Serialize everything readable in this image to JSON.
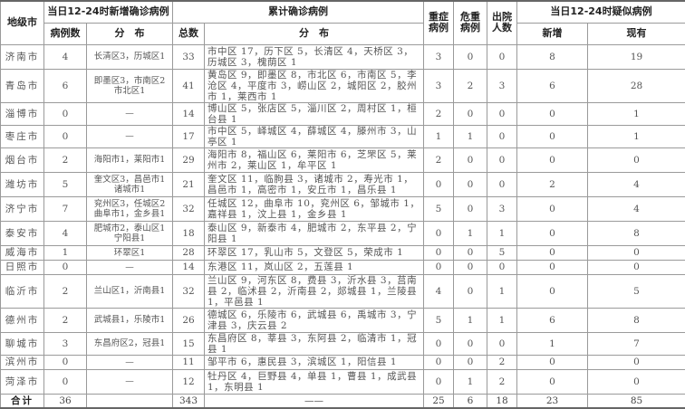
{
  "headers": {
    "city": "地级市",
    "new_group": "当日12-24时新增确诊病例",
    "new_count": "病例数",
    "new_dist": "分　布",
    "cum_group": "累计确诊病例",
    "cum_total": "总数",
    "cum_dist": "分　布",
    "severe": "重症病例",
    "critical": "危重病例",
    "discharged": "出院人数",
    "suspect_group": "当日12-24时疑似病例",
    "suspect_new": "新增",
    "suspect_current": "现有"
  },
  "rows": [
    {
      "city": "济南市",
      "new": "4",
      "new_dist": "长清区3，历城区1",
      "total": "33",
      "dist": "市中区 17，历下区 5，长清区 4，天桥区 3，历城区 3，槐荫区 1",
      "severe": "3",
      "critical": "0",
      "discharged": "0",
      "s_new": "8",
      "s_cur": "19"
    },
    {
      "city": "青岛市",
      "new": "6",
      "new_dist": "即墨区3，市南区2 市北区1",
      "total": "41",
      "dist": "黄岛区 9，即墨区 8，市北区 6，市南区 5，李沧区 4，平度市 3，崂山区 2，城阳区 2，胶州市 1，莱西市 1",
      "severe": "3",
      "critical": "2",
      "discharged": "3",
      "s_new": "6",
      "s_cur": "28"
    },
    {
      "city": "淄博市",
      "new": "0",
      "new_dist": "—",
      "total": "14",
      "dist": "博山区 5，张店区 5，淄川区 2，周村区 1，桓台县 1",
      "severe": "2",
      "critical": "0",
      "discharged": "0",
      "s_new": "0",
      "s_cur": "1"
    },
    {
      "city": "枣庄市",
      "new": "0",
      "new_dist": "—",
      "total": "17",
      "dist": "市中区 5，峄城区 4，薛城区 4，滕州市 3，山亭区 1",
      "severe": "1",
      "critical": "1",
      "discharged": "0",
      "s_new": "0",
      "s_cur": "1"
    },
    {
      "city": "烟台市",
      "new": "2",
      "new_dist": "海阳市1，莱阳市1",
      "total": "29",
      "dist": "海阳市 8，福山区 6，莱阳市 6，芝罘区 5，莱州市 2，莱山区 1，牟平区 1",
      "severe": "2",
      "critical": "0",
      "discharged": "0",
      "s_new": "0",
      "s_cur": "0"
    },
    {
      "city": "潍坊市",
      "new": "5",
      "new_dist": "奎文区3，昌邑市1 诸城市1",
      "total": "21",
      "dist": "奎文区 11，临朐县 3，诸城市 2，寿光市 1，昌邑市 1，高密市 1，安丘市 1，昌乐县 1",
      "severe": "0",
      "critical": "0",
      "discharged": "0",
      "s_new": "2",
      "s_cur": "4"
    },
    {
      "city": "济宁市",
      "new": "7",
      "new_dist": "兖州区3，任城区2 曲阜市1，金乡县1",
      "total": "32",
      "dist": "任城区 12，曲阜市 10，兖州区 6，邹城市 1，嘉祥县 1，汶上县 1，金乡县 1",
      "severe": "5",
      "critical": "0",
      "discharged": "3",
      "s_new": "0",
      "s_cur": "4"
    },
    {
      "city": "泰安市",
      "new": "4",
      "new_dist": "肥城市2，泰山区1 宁阳县1",
      "total": "18",
      "dist": "泰山区 9，新泰市 4，肥城市 2，东平县 2，宁阳县 1",
      "severe": "0",
      "critical": "1",
      "discharged": "1",
      "s_new": "0",
      "s_cur": "8"
    },
    {
      "city": "威海市",
      "new": "1",
      "new_dist": "环翠区1",
      "total": "28",
      "dist": "环翠区 17，乳山市 5，文登区 5，荣成市 1",
      "severe": "0",
      "critical": "0",
      "discharged": "5",
      "s_new": "0",
      "s_cur": "0"
    },
    {
      "city": "日照市",
      "new": "0",
      "new_dist": "—",
      "total": "14",
      "dist": "东港区 11，岚山区 2，五莲县 1",
      "severe": "0",
      "critical": "0",
      "discharged": "0",
      "s_new": "0",
      "s_cur": "0"
    },
    {
      "city": "临沂市",
      "new": "2",
      "new_dist": "兰山区1，沂南县1",
      "total": "32",
      "dist": "兰山区 9，河东区 8，费县 3，沂水县 3，莒南县 2，临沭县 2，沂南县 2，郯城县 1，兰陵县 1，平邑县 1",
      "severe": "4",
      "critical": "0",
      "discharged": "1",
      "s_new": "0",
      "s_cur": "5"
    },
    {
      "city": "德州市",
      "new": "2",
      "new_dist": "武城县1，乐陵市1",
      "total": "26",
      "dist": "德城区 6，乐陵市 6，武城县 6，禹城市 3，宁津县 3，庆云县 2",
      "severe": "5",
      "critical": "1",
      "discharged": "1",
      "s_new": "6",
      "s_cur": "8"
    },
    {
      "city": "聊城市",
      "new": "3",
      "new_dist": "东昌府区2，冠县1",
      "total": "15",
      "dist": "东昌府区 8，莘县 3，东阿县 2，临清市 1，冠县 1",
      "severe": "0",
      "critical": "0",
      "discharged": "0",
      "s_new": "1",
      "s_cur": "7"
    },
    {
      "city": "滨州市",
      "new": "0",
      "new_dist": "—",
      "total": "11",
      "dist": "邹平市 6，惠民县 3，滨城区 1，阳信县 1",
      "severe": "0",
      "critical": "0",
      "discharged": "2",
      "s_new": "0",
      "s_cur": "0"
    },
    {
      "city": "菏泽市",
      "new": "0",
      "new_dist": "—",
      "total": "12",
      "dist": "牡丹区 4，巨野县 4，单县 1，曹县 1，成武县 1，东明县 1",
      "severe": "0",
      "critical": "1",
      "discharged": "2",
      "s_new": "0",
      "s_cur": "0"
    }
  ],
  "total": {
    "label": "合计",
    "new": "36",
    "new_dist": "",
    "total": "343",
    "dist": "——",
    "severe": "25",
    "critical": "6",
    "discharged": "18",
    "s_new": "23",
    "s_cur": "85"
  }
}
